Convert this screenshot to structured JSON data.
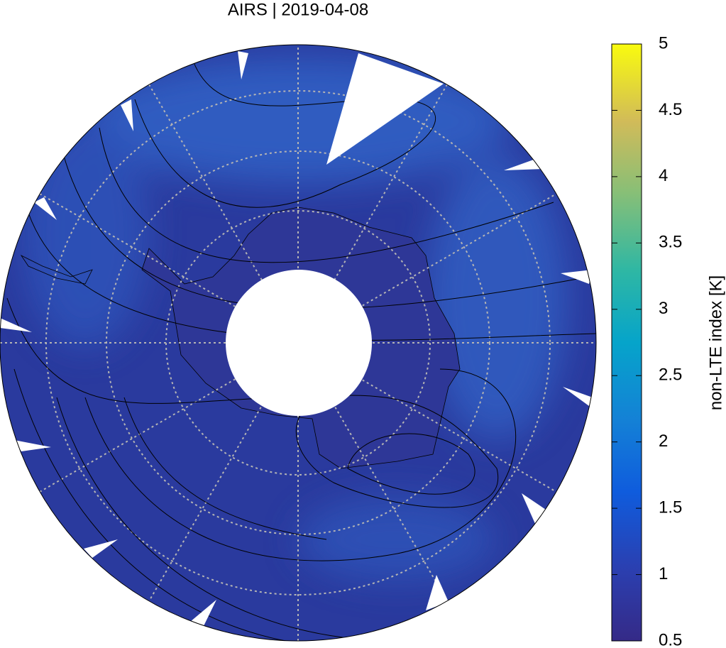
{
  "title": "AIRS | 2019-04-08",
  "colorbar": {
    "label": "non-LTE index [K]",
    "range": [
      0.5,
      5
    ],
    "ticks": [
      0.5,
      1,
      1.5,
      2,
      2.5,
      3,
      3.5,
      4,
      4.5,
      5
    ]
  }
}
